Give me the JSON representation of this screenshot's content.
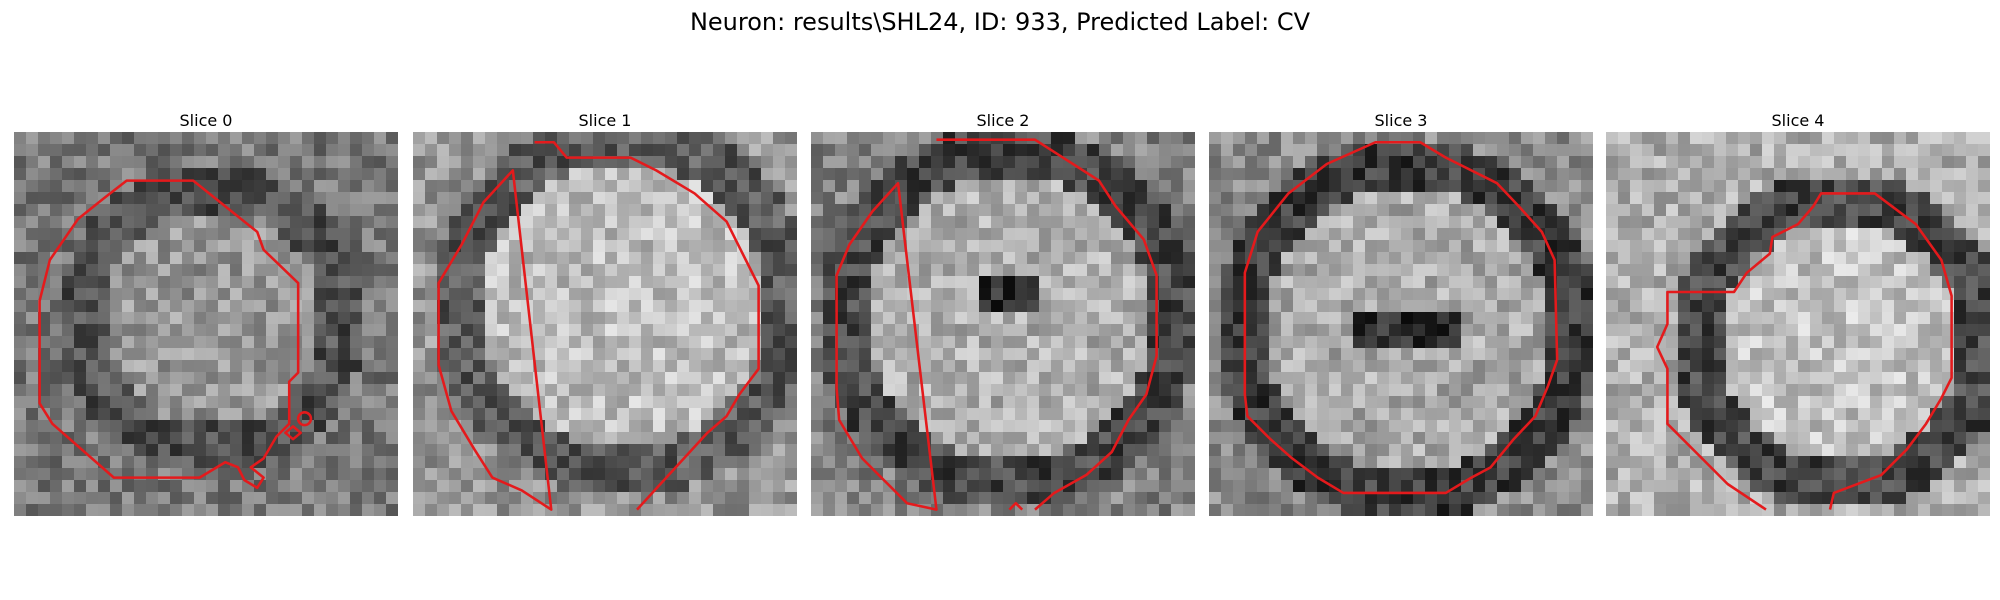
{
  "figure": {
    "title": "Neuron: results\\SHL24, ID: 933, Predicted Label: CV"
  },
  "colors": {
    "contour": "#e41a1c",
    "background": "#ffffff"
  },
  "panels": [
    {
      "title": "Slice 0"
    },
    {
      "title": "Slice 1"
    },
    {
      "title": "Slice 2"
    },
    {
      "title": "Slice 3"
    },
    {
      "title": "Slice 4"
    }
  ]
}
